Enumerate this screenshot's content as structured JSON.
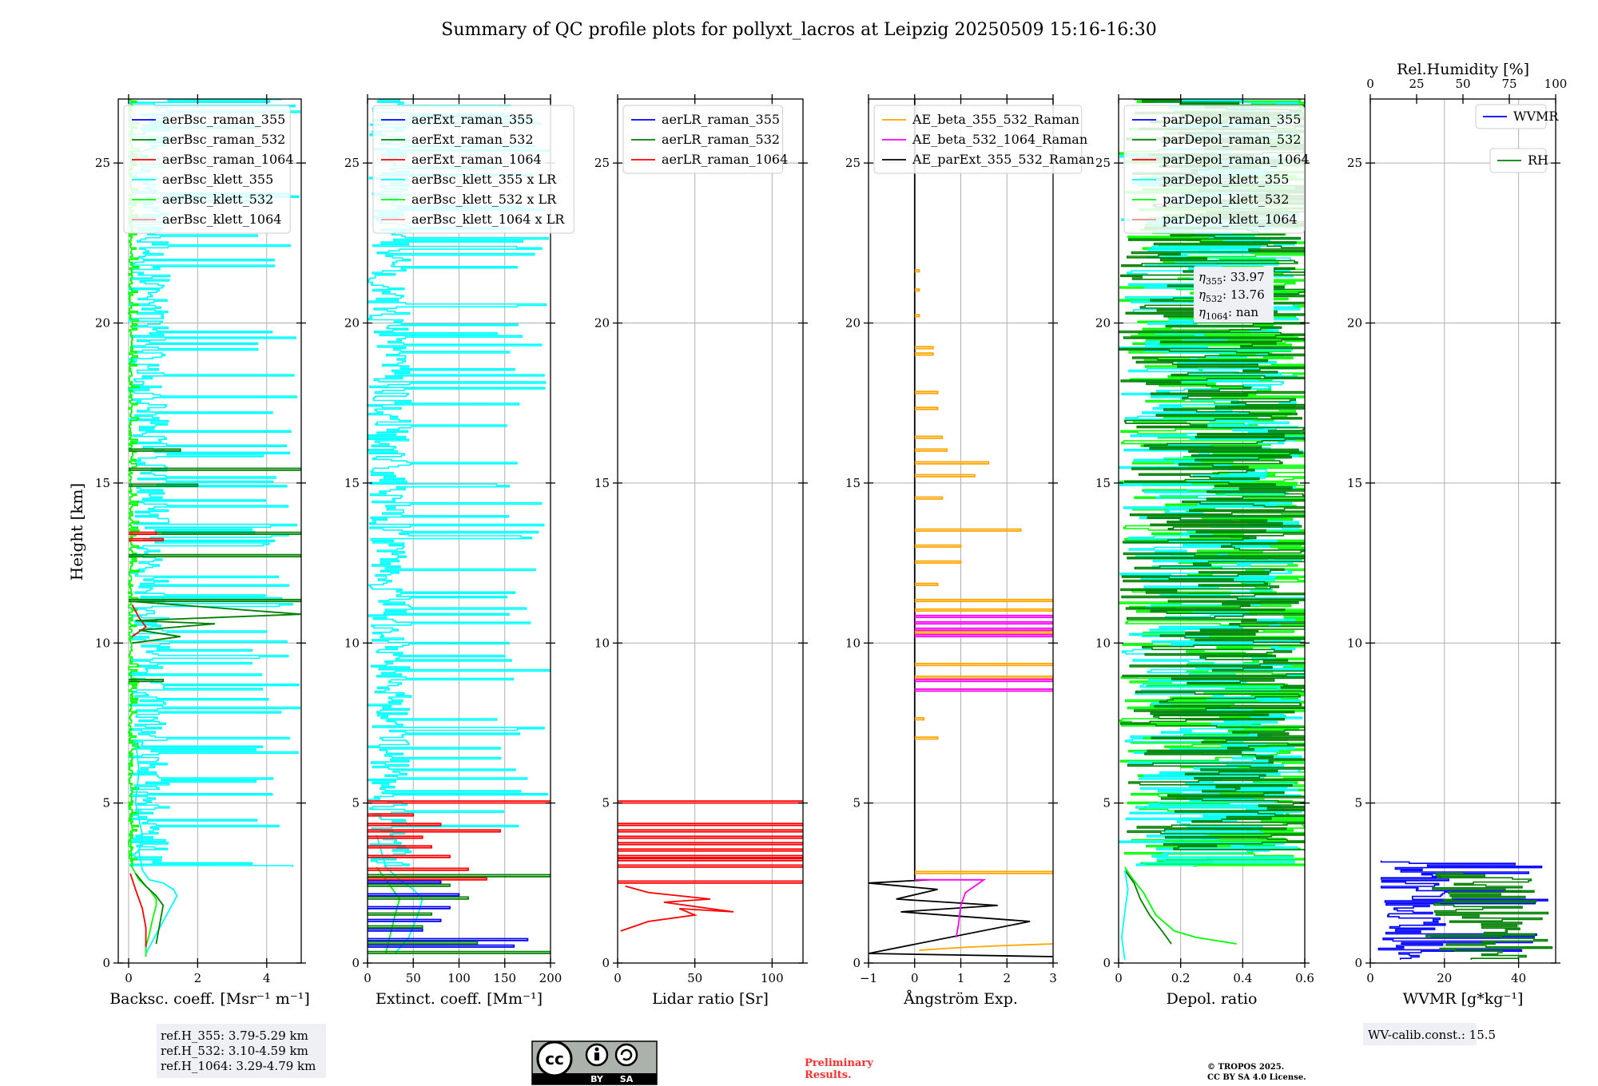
{
  "title": "Summary of QC profile plots for pollyxt_lacros at Leipzig 20250509 15:16-16:30",
  "y_axis_label": "Height [km]",
  "colors": {
    "raman_355": "#0000ff",
    "raman_532": "#008000",
    "raman_1064": "#ff0000",
    "klett_355": "#00ffff",
    "klett_532": "#00ff00",
    "klett_1064": "#ff8c8c",
    "ae_1": "#ffa500",
    "ae_2": "#ff00ff",
    "ae_3": "#000000",
    "grid": "#b0b0b0"
  },
  "chart_data": [
    {
      "id": "bsc",
      "type": "line",
      "xlabel": "Backsc. coeff. [Msr⁻¹ m⁻¹]",
      "xlim": [
        -0.3,
        5
      ],
      "xticks": [
        0,
        2,
        4
      ],
      "ylim": [
        0,
        27
      ],
      "yticks": [
        0,
        5,
        10,
        15,
        20,
        25
      ],
      "grid": true,
      "legend": {
        "position": "top-left",
        "entries": [
          "aerBsc_raman_355",
          "aerBsc_raman_532",
          "aerBsc_raman_1064",
          "aerBsc_klett_355",
          "aerBsc_klett_532",
          "aerBsc_klett_1064"
        ],
        "colors": [
          "raman_355",
          "raman_532",
          "raman_1064",
          "klett_355",
          "klett_532",
          "klett_1064"
        ]
      },
      "series": [
        {
          "name": "aerBsc_klett_355",
          "color": "klett_355",
          "x": [
            0.5,
            0.7,
            1.0,
            1.3,
            1.4,
            1.3,
            1.0,
            0.6,
            0.4,
            0.3,
            0.4,
            0.2,
            0.3,
            0.2
          ],
          "y": [
            0.3,
            0.7,
            1.3,
            1.9,
            2.1,
            2.3,
            2.5,
            2.6,
            2.9,
            3.5,
            4.0,
            5.0,
            6.0,
            7.0
          ]
        },
        {
          "name": "aerBsc_klett_532",
          "color": "klett_532",
          "x": [
            0.5,
            0.5,
            0.6,
            0.7,
            0.8,
            0.8,
            0.6,
            0.3,
            0.1,
            0.05
          ],
          "y": [
            0.2,
            0.5,
            0.9,
            1.4,
            1.8,
            2.0,
            2.3,
            2.6,
            3.0,
            4.0
          ]
        },
        {
          "name": "aerBsc_raman_532",
          "color": "raman_532",
          "x": [
            0.8,
            0.9,
            1.0,
            0.8,
            0.5,
            0.2
          ],
          "y": [
            0.6,
            1.2,
            1.8,
            2.1,
            2.4,
            2.8
          ]
        },
        {
          "name": "aerBsc_raman_1064",
          "color": "raman_1064",
          "x": [
            0.5,
            0.5,
            0.4,
            0.2,
            0.05
          ],
          "y": [
            0.5,
            1.1,
            1.7,
            2.3,
            2.8
          ]
        },
        {
          "name": "aerBsc_raman_1064",
          "color": "raman_1064",
          "x": [
            0.1,
            0.5,
            0.3,
            0.1
          ],
          "y": [
            10.2,
            10.5,
            10.8,
            11.2
          ]
        },
        {
          "name": "aerBsc_raman_532",
          "color": "raman_532",
          "x": [
            0.1,
            1.5,
            0.3,
            2.5,
            0.2,
            5.0,
            0.1
          ],
          "y": [
            10.0,
            10.2,
            10.4,
            10.6,
            10.7,
            10.9,
            11.3
          ]
        }
      ],
      "spikes": [
        {
          "color": "raman_532",
          "heights": [
            8.8,
            11.3,
            12.7,
            13.4,
            14.9,
            15.4,
            16.0
          ],
          "values": [
            1.0,
            5.0,
            5.0,
            5.0,
            2.0,
            5.0,
            1.5
          ]
        },
        {
          "color": "raman_1064",
          "heights": [
            13.2,
            13.4
          ],
          "values": [
            1.0,
            0.8
          ]
        }
      ],
      "noisy": [
        {
          "color": "klett_355",
          "y_range": [
            3.0,
            27.0
          ],
          "max": 5.0,
          "typical": 1.0
        },
        {
          "color": "klett_532",
          "y_range": [
            3.0,
            27.0
          ],
          "max": 0.3,
          "typical": 0.1
        }
      ]
    },
    {
      "id": "ext",
      "type": "line",
      "xlabel": "Extinct. coeff. [Mm⁻¹]",
      "xlim": [
        0,
        200
      ],
      "xticks": [
        0,
        50,
        100,
        150,
        200
      ],
      "ylim": [
        0,
        27
      ],
      "yticks": [
        0,
        5,
        10,
        15,
        20,
        25
      ],
      "grid": true,
      "legend": {
        "position": "top-left",
        "entries": [
          "aerExt_raman_355",
          "aerExt_raman_532",
          "aerExt_raman_1064",
          "aerBsc_klett_355 x LR",
          "aerBsc_klett_532 x LR",
          "aerBsc_klett_1064 x LR"
        ],
        "colors": [
          "raman_355",
          "raman_532",
          "raman_1064",
          "klett_355",
          "klett_532",
          "klett_1064"
        ]
      },
      "series": [
        {
          "name": "aerBsc_klett_355 x LR",
          "color": "klett_355",
          "x": [
            30,
            45,
            55,
            60,
            50,
            35,
            20,
            10
          ],
          "y": [
            0.3,
            0.8,
            1.5,
            2.0,
            2.3,
            2.6,
            3.0,
            4.0
          ]
        },
        {
          "name": "aerBsc_klett_532 x LR",
          "color": "klett_532",
          "x": [
            20,
            25,
            30,
            35,
            25,
            10
          ],
          "y": [
            0.3,
            0.9,
            1.5,
            2.0,
            2.4,
            3.0
          ]
        }
      ],
      "spikes": [
        {
          "color": "raman_1064",
          "heights": [
            2.6,
            2.9,
            3.3,
            3.6,
            3.9,
            4.1,
            4.3,
            4.6,
            5.0
          ],
          "values": [
            130,
            110,
            90,
            70,
            60,
            145,
            80,
            50,
            200
          ]
        },
        {
          "color": "raman_355",
          "heights": [
            0.5,
            0.7,
            1.0,
            1.3,
            1.7,
            2.1,
            2.5
          ],
          "values": [
            160,
            175,
            60,
            80,
            90,
            100,
            80
          ]
        },
        {
          "color": "raman_532",
          "heights": [
            0.3,
            0.6,
            1.1,
            1.5,
            2.0,
            2.4,
            2.7
          ],
          "values": [
            200,
            120,
            60,
            70,
            110,
            90,
            200
          ]
        }
      ],
      "noisy": [
        {
          "color": "klett_355",
          "y_range": [
            3.0,
            27.0
          ],
          "max": 200,
          "typical": 40
        }
      ]
    },
    {
      "id": "lr",
      "type": "line",
      "xlabel": "Lidar ratio [Sr]",
      "xlim": [
        0,
        120
      ],
      "xticks": [
        0,
        50,
        100
      ],
      "ylim": [
        0,
        27
      ],
      "yticks": [
        0,
        5,
        10,
        15,
        20,
        25
      ],
      "grid": true,
      "legend": {
        "position": "top-left",
        "entries": [
          "aerLR_raman_355",
          "aerLR_raman_532",
          "aerLR_raman_1064"
        ],
        "colors": [
          "raman_355",
          "raman_532",
          "raman_1064"
        ]
      },
      "series": [
        {
          "name": "aerLR_raman_1064",
          "color": "raman_1064",
          "x": [
            2,
            20,
            50,
            40,
            75,
            30,
            60,
            20,
            5
          ],
          "y": [
            1.0,
            1.3,
            1.5,
            1.7,
            1.6,
            1.9,
            2.0,
            2.2,
            2.4
          ]
        }
      ],
      "spikes": [
        {
          "color": "raman_1064",
          "heights": [
            2.5,
            3.0,
            3.2,
            3.3,
            3.5,
            3.7,
            3.9,
            4.1,
            4.3,
            5.0
          ],
          "values": [
            120,
            120,
            120,
            120,
            120,
            120,
            120,
            120,
            120,
            120
          ]
        }
      ]
    },
    {
      "id": "ae",
      "type": "line",
      "xlabel": "Ångström Exp.",
      "xlim": [
        -1,
        3
      ],
      "xticks": [
        -1,
        0,
        1,
        2,
        3
      ],
      "ylim": [
        0,
        27
      ],
      "yticks": [
        0,
        5,
        10,
        15,
        20,
        25
      ],
      "grid": true,
      "legend": {
        "position": "top-left",
        "entries": [
          "AE_beta_355_532_Raman",
          "AE_beta_532_1064_Raman",
          "AE_parExt_355_532_Raman"
        ],
        "colors": [
          "ae_1",
          "ae_2",
          "ae_3"
        ]
      },
      "series": [
        {
          "name": "AE_parExt_355_532_Raman",
          "color": "ae_3",
          "x": [
            0,
            0,
            0,
            0,
            0.3,
            -1,
            0.5,
            -0.4,
            1.8,
            -0.3,
            2.5,
            -1,
            3
          ],
          "y": [
            27,
            3.5,
            2.8,
            2.6,
            2.6,
            2.5,
            2.3,
            2.0,
            1.8,
            1.6,
            1.3,
            0.3,
            0.2
          ]
        },
        {
          "name": "AE_beta_532_1064_Raman",
          "color": "ae_2",
          "x": [
            0,
            1.5,
            1.1,
            1.0,
            0.95,
            0.9
          ],
          "y": [
            2.6,
            2.6,
            2.2,
            1.8,
            1.2,
            0.8
          ]
        },
        {
          "name": "AE_beta_355_532_Raman",
          "color": "ae_1",
          "x": [
            0.1,
            0.6,
            1.2,
            2.0,
            3.0
          ],
          "y": [
            0.4,
            0.45,
            0.5,
            0.55,
            0.6
          ]
        }
      ],
      "spikes": [
        {
          "color": "ae_1",
          "heights": [
            2.8,
            7.0,
            7.6,
            8.5,
            8.9,
            9.3,
            10.3,
            11.0,
            11.3,
            11.8,
            12.5,
            13.0,
            13.5,
            14.5,
            15.2,
            15.6,
            16.0,
            16.4,
            17.3,
            17.8,
            19.0,
            19.2,
            20.2,
            21.0,
            21.6
          ],
          "values": [
            3.0,
            0.5,
            0.2,
            3.0,
            3.0,
            3.0,
            3.0,
            3.0,
            3.0,
            0.5,
            1.0,
            1.0,
            2.3,
            0.6,
            1.3,
            1.6,
            0.7,
            0.6,
            0.5,
            0.5,
            0.4,
            0.4,
            0.1,
            0.1,
            0.1
          ]
        },
        {
          "color": "ae_2",
          "heights": [
            8.5,
            8.8,
            10.2,
            10.4,
            10.6,
            10.8
          ],
          "values": [
            3.0,
            3.0,
            3.0,
            3.0,
            3.0,
            3.0
          ]
        }
      ]
    },
    {
      "id": "depol",
      "type": "line",
      "xlabel": "Depol. ratio",
      "xlim": [
        0,
        0.6
      ],
      "xticks": [
        0,
        0.2,
        0.4,
        0.6
      ],
      "ylim": [
        0,
        27
      ],
      "yticks": [
        0,
        5,
        10,
        15,
        20,
        25
      ],
      "grid": true,
      "legend": {
        "position": "top-left",
        "entries": [
          "parDepol_raman_355",
          "parDepol_raman_532",
          "parDepol_raman_1064",
          "parDepol_klett_355",
          "parDepol_klett_532",
          "parDepol_klett_1064"
        ],
        "colors": [
          "raman_355",
          "raman_532",
          "raman_1064",
          "klett_355",
          "klett_532",
          "klett_1064"
        ]
      },
      "annotation": {
        "position": "top-right",
        "lines": [
          {
            "symbol": "η",
            "sub": "355",
            "value": ": 33.97"
          },
          {
            "symbol": "η",
            "sub": "532",
            "value": ": 13.76"
          },
          {
            "symbol": "η",
            "sub": "1064",
            "value": ": nan"
          }
        ]
      },
      "series": [
        {
          "name": "parDepol_klett_532",
          "color": "klett_532",
          "x": [
            0.38,
            0.25,
            0.18,
            0.12,
            0.08,
            0.04,
            0.02
          ],
          "y": [
            0.6,
            0.8,
            1.0,
            1.5,
            2.2,
            2.7,
            3.0
          ]
        },
        {
          "name": "parDepol_raman_532",
          "color": "raman_532",
          "x": [
            0.17,
            0.14,
            0.1,
            0.07,
            0.05,
            0.02
          ],
          "y": [
            0.6,
            1.0,
            1.5,
            2.0,
            2.5,
            2.9
          ]
        },
        {
          "name": "parDepol_klett_355",
          "color": "klett_355",
          "x": [
            0.02,
            0.01,
            0.02,
            0.03,
            0.02
          ],
          "y": [
            0.1,
            0.8,
            1.6,
            2.3,
            2.9
          ]
        }
      ],
      "noisy": [
        {
          "color": "klett_532",
          "y_range": [
            3.0,
            27.0
          ],
          "max": 0.6,
          "typical": 0.6
        },
        {
          "color": "klett_355",
          "y_range": [
            3.0,
            27.0
          ],
          "max": 0.6,
          "typical": 0.5
        },
        {
          "color": "raman_532",
          "y_range": [
            3.5,
            27.0
          ],
          "max": 0.6,
          "typical": 0.6
        }
      ]
    },
    {
      "id": "wv",
      "type": "line",
      "xlabel": "WVMR [g*kg⁻¹]",
      "top_xlabel": "Rel.Humidity [%]",
      "xlim": [
        0,
        50
      ],
      "xticks": [
        0,
        20,
        40
      ],
      "top_xlim": [
        0,
        100
      ],
      "top_xticks": [
        0,
        25,
        50,
        75,
        100
      ],
      "ylim": [
        0,
        27
      ],
      "yticks": [
        0,
        5,
        10,
        15,
        20,
        25
      ],
      "grid": true,
      "legend": {
        "position": "top-right",
        "entries": [
          "WVMR",
          "RH"
        ],
        "colors": [
          "raman_355",
          "raman_532"
        ]
      },
      "noisy": [
        {
          "color": "raman_355",
          "y_range": [
            0.1,
            3.2
          ],
          "max": 50,
          "typical": 18,
          "min": 2
        },
        {
          "color": "raman_532",
          "y_range": [
            0.1,
            2.8
          ],
          "max": 50,
          "typical": 42,
          "min": 15
        }
      ]
    }
  ],
  "ref_heights": [
    "ref.H_355: 3.79-5.29 km",
    "ref.H_532: 3.10-4.59 km",
    "ref.H_1064: 3.29-4.79 km"
  ],
  "wv_calib": "WV-calib.const.: 15.5",
  "license_badge": {
    "cc": "cc",
    "by": "BY",
    "sa": "SA"
  },
  "preliminary": [
    "Preliminary",
    "Results."
  ],
  "copyright": [
    "© TROPOS 2025.",
    "CC BY SA 4.0 License."
  ]
}
